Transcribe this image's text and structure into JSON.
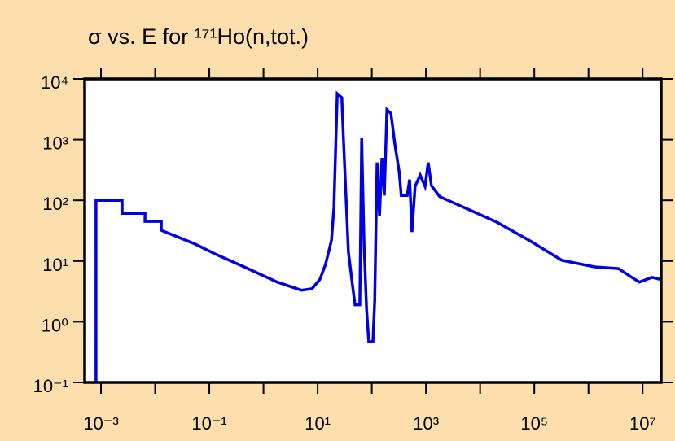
{
  "chart_data": {
    "type": "line",
    "title": "σ vs. E for ¹⁷¹Ho(n,tot.)",
    "x_scale": "log",
    "y_scale": "log",
    "xlim": [
      0.0005,
      22000000
    ],
    "ylim": [
      0.1,
      10000
    ],
    "xticks": [
      {
        "value": 0.001,
        "label": "10⁻³"
      },
      {
        "value": 0.1,
        "label": "10⁻¹"
      },
      {
        "value": 10,
        "label": "10¹"
      },
      {
        "value": 1000,
        "label": "10³"
      },
      {
        "value": 100000,
        "label": "10⁵"
      },
      {
        "value": 10000000,
        "label": "10⁷"
      }
    ],
    "xticks_minor": [
      0.01,
      1,
      100,
      10000,
      1000000
    ],
    "yticks": [
      {
        "value": 0.1,
        "label": "10⁻¹"
      },
      {
        "value": 1,
        "label": "10⁰"
      },
      {
        "value": 10,
        "label": "10¹"
      },
      {
        "value": 100,
        "label": "10²"
      },
      {
        "value": 1000,
        "label": "10³"
      },
      {
        "value": 10000,
        "label": "10⁴"
      }
    ],
    "color": "#0000e0",
    "x": [
      0.00081,
      0.00081,
      0.00246,
      0.00246,
      0.0065,
      0.0065,
      0.013,
      0.013,
      0.023,
      0.055,
      0.13,
      0.44,
      1.8,
      5,
      7.9,
      11,
      14,
      18,
      20,
      23,
      28,
      30,
      37,
      44,
      49,
      60,
      65,
      72,
      80,
      88,
      105,
      113,
      125,
      139,
      154,
      170,
      190,
      225,
      270,
      320,
      350,
      450,
      500,
      550,
      630,
      780,
      960,
      1100,
      1260,
      1800,
      5100,
      20000,
      80000,
      320000,
      1300000,
      3600000,
      6100000,
      8700000,
      15000000,
      21000000
    ],
    "values": [
      0.1,
      100,
      100,
      61,
      61,
      45,
      45,
      32,
      26,
      19,
      13,
      8,
      4.5,
      3.3,
      3.5,
      5,
      8.8,
      22,
      76,
      5700,
      4900,
      1050,
      14,
      4,
      1.9,
      1.9,
      1050,
      19,
      1.6,
      0.47,
      0.47,
      2.2,
      420,
      56,
      500,
      120,
      3100,
      2700,
      780,
      300,
      120,
      120,
      220,
      30,
      170,
      260,
      170,
      420,
      175,
      115,
      76,
      44,
      22,
      10.3,
      8,
      7.5,
      5.5,
      4.5,
      5.4,
      5
    ]
  }
}
